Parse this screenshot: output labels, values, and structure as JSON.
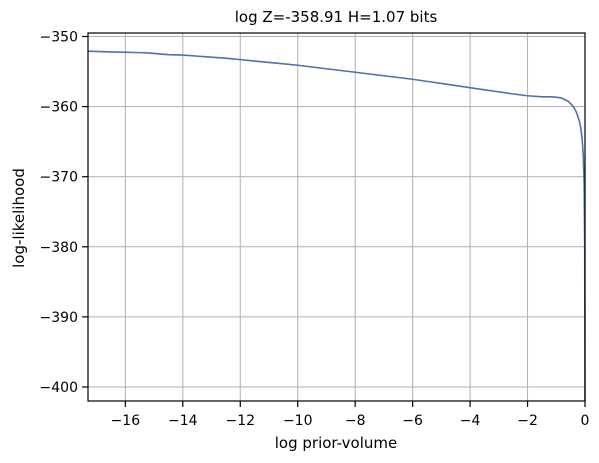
{
  "chart_data": {
    "type": "line",
    "title": "log Z=-358.91 H=1.07 bits",
    "xlabel": "log prior-volume",
    "ylabel": "log-likelihood",
    "xlim": [
      -17.3,
      0
    ],
    "ylim": [
      -402,
      -349.5
    ],
    "grid": true,
    "x_ticks": [
      -16,
      -14,
      -12,
      -10,
      -8,
      -6,
      -4,
      -2,
      0
    ],
    "y_ticks": [
      -350,
      -360,
      -370,
      -380,
      -390,
      -400
    ],
    "x_tick_labels": [
      "−16",
      "−14",
      "−12",
      "−10",
      "−8",
      "−6",
      "−4",
      "−2",
      "0"
    ],
    "y_tick_labels": [
      "−350",
      "−360",
      "−370",
      "−380",
      "−390",
      "−400"
    ],
    "line_color": "#4c72b0",
    "series": [
      {
        "x": [
          -17.3,
          -16.5,
          -15.5,
          -15.2,
          -14.5,
          -14.0,
          -13.5,
          -13.0,
          -12.5,
          -12.0,
          -11.5,
          -11.0,
          -10.5,
          -10.0,
          -9.5,
          -9.0,
          -8.5,
          -8.0,
          -7.5,
          -7.0,
          -6.5,
          -6.0,
          -5.5,
          -5.0,
          -4.5,
          -4.0,
          -3.5,
          -3.0,
          -2.5,
          -2.0,
          -1.5,
          -1.2,
          -1.0,
          -0.8,
          -0.6,
          -0.4,
          -0.3,
          -0.2,
          -0.15,
          -0.1,
          -0.06,
          -0.03,
          -0.01,
          0
        ],
        "y": [
          -352.1,
          -352.2,
          -352.3,
          -352.35,
          -352.6,
          -352.65,
          -352.8,
          -352.95,
          -353.1,
          -353.3,
          -353.5,
          -353.7,
          -353.9,
          -354.1,
          -354.35,
          -354.6,
          -354.85,
          -355.1,
          -355.35,
          -355.6,
          -355.85,
          -356.1,
          -356.4,
          -356.7,
          -357.0,
          -357.3,
          -357.6,
          -357.9,
          -358.2,
          -358.45,
          -358.6,
          -358.6,
          -358.65,
          -358.8,
          -359.2,
          -360.0,
          -360.8,
          -362.0,
          -363.0,
          -364.5,
          -367.0,
          -371.0,
          -380.0,
          -402.0
        ]
      }
    ]
  }
}
